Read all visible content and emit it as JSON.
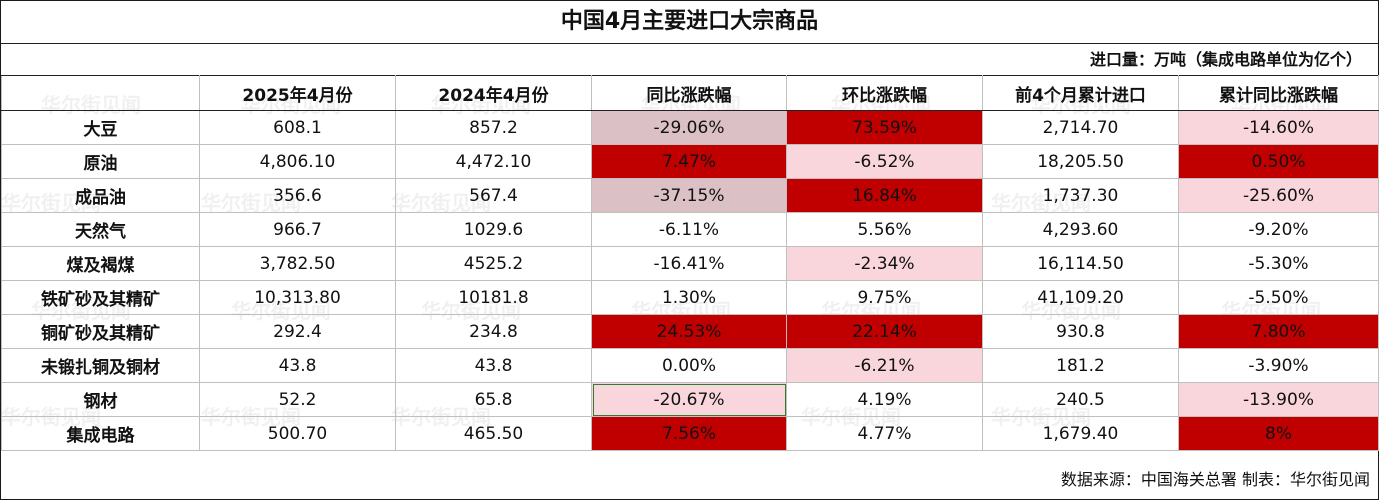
{
  "title": "中国4月主要进口大宗商品",
  "unit_note": "进口量：万吨（集成电路单位为亿个）",
  "footer": "数据来源：中国海关总署 制表：华尔街见闻",
  "watermark": "华尔街见闻",
  "colors": {
    "dark_red": "#c00000",
    "light_pink": "#f9d5dc",
    "gray_pink": "#dbc1c6",
    "highlight_border": "#2e7d32"
  },
  "chart_data": {
    "type": "table",
    "title": "中国4月主要进口大宗商品",
    "columns": [
      "",
      "2025年4月份",
      "2024年4月份",
      "同比涨跌幅",
      "环比涨跌幅",
      "前4个月累计进口",
      "累计同比涨跌幅"
    ],
    "rows": [
      {
        "name": "大豆",
        "c1": "608.1",
        "c2": "857.2",
        "c3": "-29.06%",
        "c4": "73.59%",
        "c5": "2,714.70",
        "c6": "-14.60%",
        "fill": {
          "c3": "gray",
          "c4": "dark",
          "c6": "light"
        }
      },
      {
        "name": "原油",
        "c1": "4,806.10",
        "c2": "4,472.10",
        "c3": "7.47%",
        "c4": "-6.52%",
        "c5": "18,205.50",
        "c6": "0.50%",
        "fill": {
          "c3": "dark",
          "c4": "light",
          "c6": "dark"
        }
      },
      {
        "name": "成品油",
        "c1": "356.6",
        "c2": "567.4",
        "c3": "-37.15%",
        "c4": "16.84%",
        "c5": "1,737.30",
        "c6": "-25.60%",
        "fill": {
          "c3": "gray",
          "c4": "dark",
          "c6": "light"
        }
      },
      {
        "name": "天然气",
        "c1": "966.7",
        "c2": "1029.6",
        "c3": "-6.11%",
        "c4": "5.56%",
        "c5": "4,293.60",
        "c6": "-9.20%",
        "fill": {}
      },
      {
        "name": "煤及褐煤",
        "c1": "3,782.50",
        "c2": "4525.2",
        "c3": "-16.41%",
        "c4": "-2.34%",
        "c5": "16,114.50",
        "c6": "-5.30%",
        "fill": {
          "c4": "light"
        }
      },
      {
        "name": "铁矿砂及其精矿",
        "c1": "10,313.80",
        "c2": "10181.8",
        "c3": "1.30%",
        "c4": "9.75%",
        "c5": "41,109.20",
        "c6": "-5.50%",
        "fill": {}
      },
      {
        "name": "铜矿砂及其精矿",
        "c1": "292.4",
        "c2": "234.8",
        "c3": "24.53%",
        "c4": "22.14%",
        "c5": "930.8",
        "c6": "7.80%",
        "fill": {
          "c3": "dark",
          "c4": "dark",
          "c6": "dark"
        }
      },
      {
        "name": "未锻扎铜及铜材",
        "c1": "43.8",
        "c2": "43.8",
        "c3": "0.00%",
        "c4": "-6.21%",
        "c5": "181.2",
        "c6": "-3.90%",
        "fill": {
          "c4": "light"
        }
      },
      {
        "name": "钢材",
        "c1": "52.2",
        "c2": "65.8",
        "c3": "-20.67%",
        "c4": "4.19%",
        "c5": "240.5",
        "c6": "-13.90%",
        "fill": {
          "c3": "light",
          "c6": "light"
        }
      },
      {
        "name": "集成电路",
        "c1": "500.70",
        "c2": "465.50",
        "c3": "7.56%",
        "c4": "4.77%",
        "c5": "1,679.40",
        "c6": "8%",
        "fill": {
          "c3": "dark",
          "c6": "dark"
        }
      }
    ],
    "selected_cell": {
      "row": 8,
      "col": "c3"
    }
  }
}
